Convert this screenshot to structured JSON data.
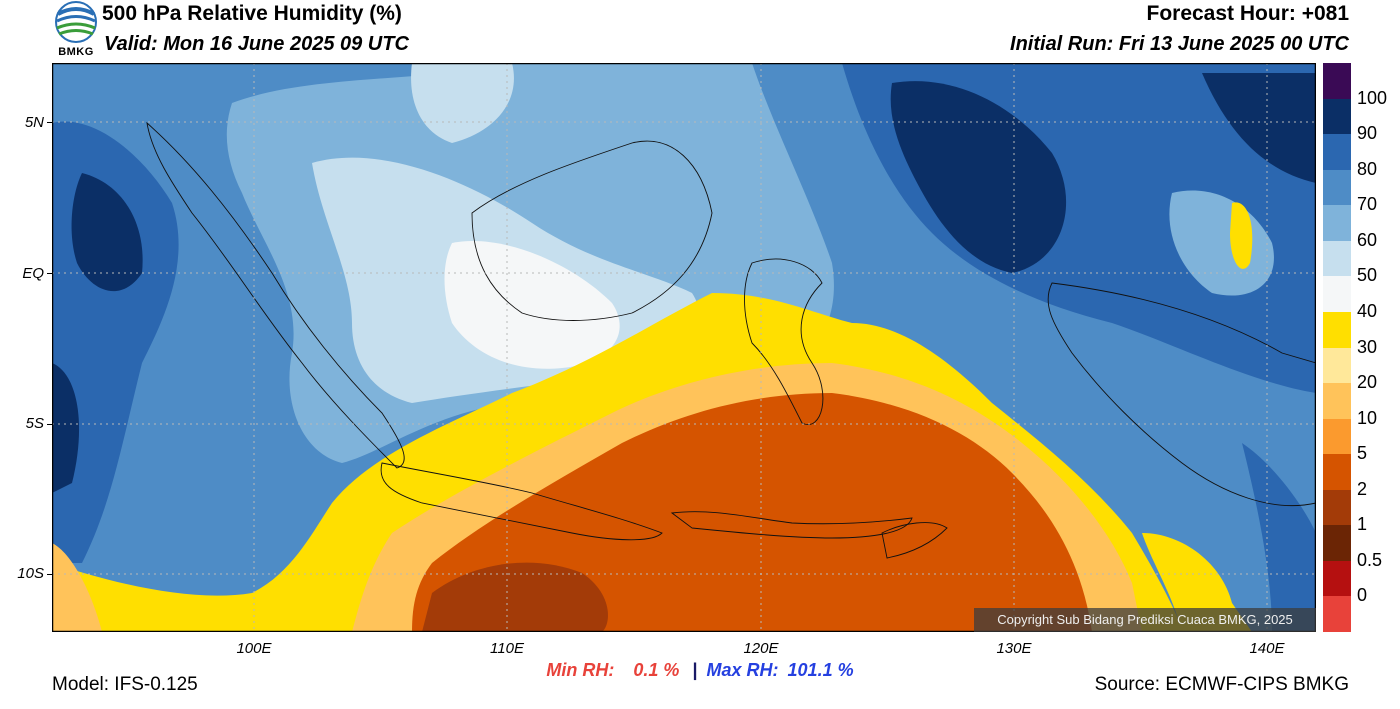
{
  "header": {
    "title": "500 hPa Relative Humidity (%)",
    "valid": "Valid: Mon 16 June 2025 09 UTC",
    "forecast_hour": "Forecast Hour: +081",
    "initial_run": "Initial Run: Fri 13 June 2025 00 UTC",
    "logo_text": "BMKG"
  },
  "axes": {
    "lat_labels": [
      "5N",
      "EQ",
      "5S",
      "10S"
    ],
    "lon_labels": [
      "100E",
      "110E",
      "120E",
      "130E",
      "140E"
    ]
  },
  "colorbar": {
    "labels": [
      "100",
      "90",
      "80",
      "70",
      "60",
      "50",
      "40",
      "30",
      "20",
      "10",
      "5",
      "2",
      "1",
      "0.5",
      "0"
    ],
    "colors": [
      "#3a0a55",
      "#0b2f66",
      "#2b67b0",
      "#4e8cc6",
      "#7fb3da",
      "#c6dfee",
      "#f5f7f8",
      "#ffdf00",
      "#ffe89a",
      "#ffc35a",
      "#fb9a2e",
      "#d55400",
      "#a33b08",
      "#6b2505",
      "#b51010",
      "#e8423a"
    ]
  },
  "stats": {
    "min_label": "Min RH:",
    "min_value": "0.1 %",
    "separator": "|",
    "max_label": "Max RH:",
    "max_value": "101.1 %"
  },
  "footer": {
    "model": "Model: IFS-0.125",
    "source": "Source: ECMWF-CIPS BMKG",
    "copyright": "Copyright Sub Bidang Prediksi Cuaca BMKG, 2025"
  }
}
